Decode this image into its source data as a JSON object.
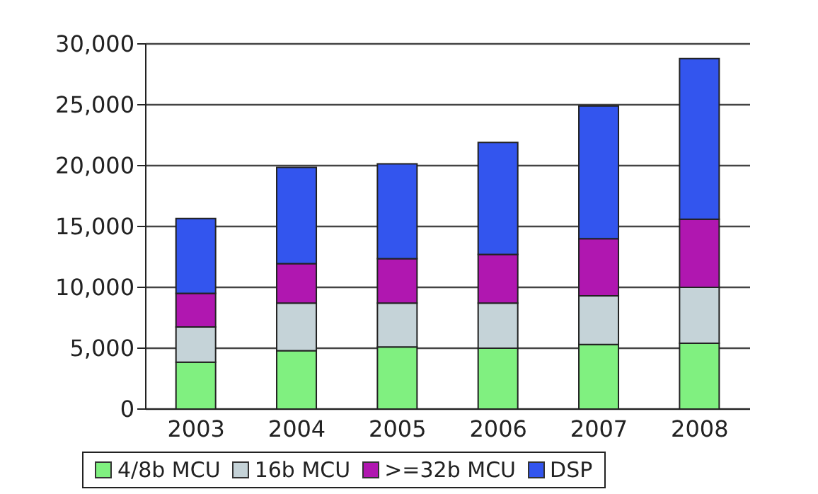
{
  "chart_data": {
    "type": "bar",
    "stacked": true,
    "categories": [
      "2003",
      "2004",
      "2005",
      "2006",
      "2007",
      "2008"
    ],
    "series": [
      {
        "name": "4/8b MCU",
        "color": "#80f080",
        "values": [
          3850,
          4800,
          5100,
          5000,
          5300,
          5400
        ]
      },
      {
        "name": "16b MCU",
        "color": "#c5d3d8",
        "values": [
          2900,
          3900,
          3600,
          3700,
          4000,
          4600
        ]
      },
      {
        "name": ">=32b MCU",
        "color": "#b017b0",
        "values": [
          2750,
          3250,
          3650,
          4000,
          4700,
          5600
        ]
      },
      {
        "name": "DSP",
        "color": "#3355ee",
        "values": [
          6150,
          7900,
          7800,
          9200,
          10900,
          13200
        ]
      }
    ],
    "ylim": [
      0,
      30000
    ],
    "yticks": [
      {
        "value": 0,
        "label": "0"
      },
      {
        "value": 5000,
        "label": "5,000"
      },
      {
        "value": 10000,
        "label": "10,000"
      },
      {
        "value": 15000,
        "label": "15,000"
      },
      {
        "value": 20000,
        "label": "20,000"
      },
      {
        "value": 25000,
        "label": "25,000"
      },
      {
        "value": 30000,
        "label": "30,000"
      }
    ],
    "grid": "y",
    "legend": "bottom"
  }
}
